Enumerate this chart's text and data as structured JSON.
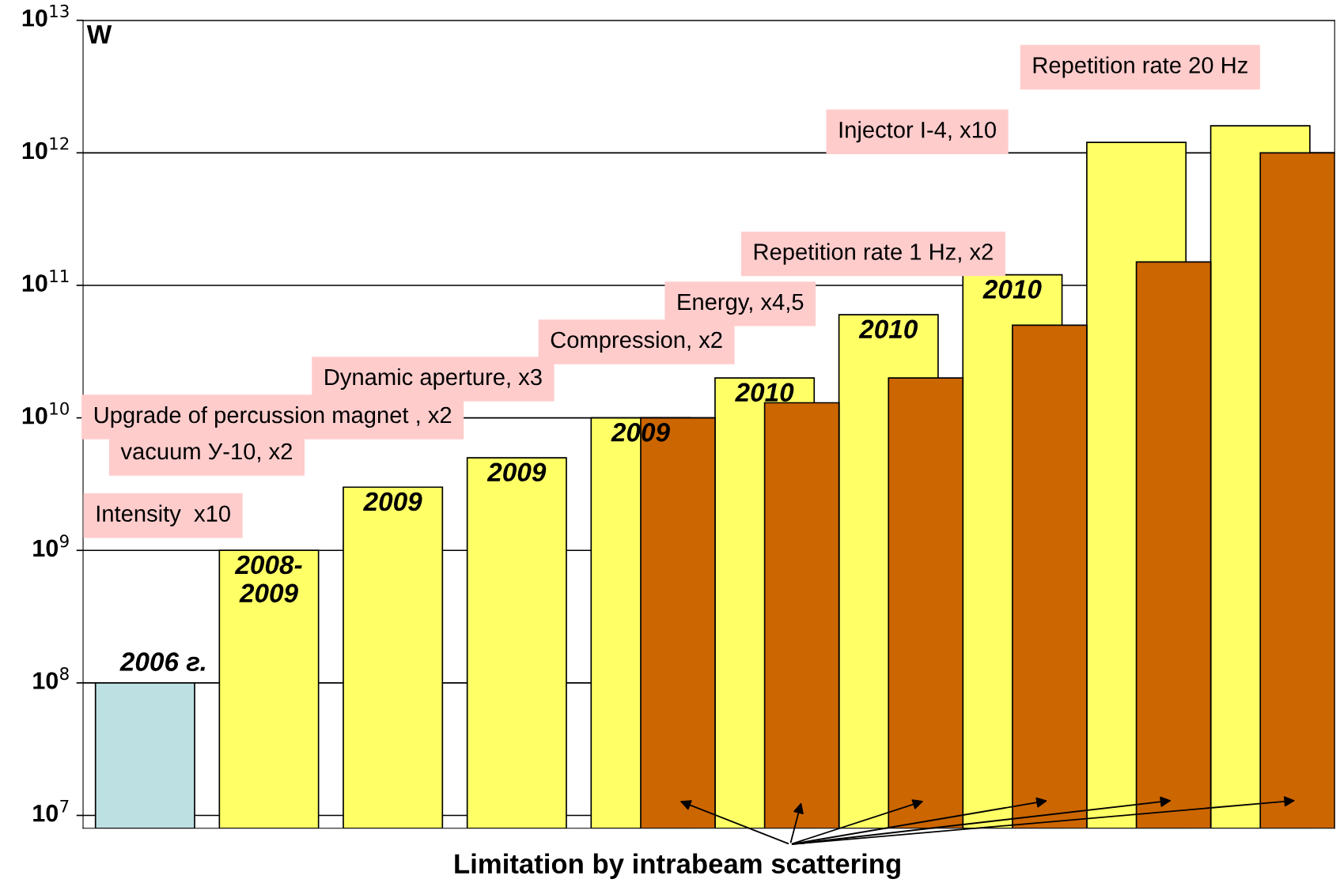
{
  "chart_data": {
    "type": "bar",
    "ylabel": "W",
    "log": "y",
    "ylim": [
      8000000,
      10000000000000
    ],
    "yticks": [
      {
        "value": 10000000,
        "label": "10$^{7}$"
      },
      {
        "value": 100000000,
        "label": "10$^{8}$"
      },
      {
        "value": 1000000000,
        "label": "10$^{9}$"
      },
      {
        "value": 10000000000,
        "label": "10$^{10}$"
      },
      {
        "value": 100000000000,
        "label": "10$^{11}$"
      },
      {
        "value": 1000000000000,
        "label": "10$^{12}$"
      },
      {
        "value": 10000000000000,
        "label": "10$^{13}$"
      }
    ],
    "categories": [
      null,
      null,
      null,
      null,
      null,
      null,
      null,
      null,
      null,
      null
    ],
    "series": [
      {
        "colors": [
          "#bde0e3",
          "#ffff66",
          "#ffff66",
          "#ffff66",
          "#ffff66",
          "#ffff66",
          "#ffff66",
          "#ffff66",
          "#ffff66",
          "#ffff66"
        ],
        "values": [
          100000000,
          1000000000,
          3000000000,
          5000000000,
          10000000000,
          20000000000,
          60000000000,
          120000000000,
          1200000000000,
          1600000000000
        ]
      },
      {
        "color": "#cc6600",
        "values": [
          null,
          null,
          null,
          null,
          10000000000,
          13000000000,
          20000000000,
          50000000000,
          150000000000,
          1000000000000
        ]
      }
    ],
    "grid": "y",
    "annotations": [
      "2006 г.",
      "2008-\n2009",
      "2009",
      "2009",
      "2009",
      "2010",
      "2010",
      "2010",
      "Repetition rate 20 Hz",
      "Injector I-4, x10",
      "Repetition rate 1 Hz, x2",
      "Energy, x4,5",
      "Compression, x2",
      "Dynamic aperture, x3",
      "Upgrade of percussion magnet , x2",
      "vacuum У-10, x2",
      "Intensity  x10",
      "Limitation by intrabeam scattering"
    ]
  }
}
